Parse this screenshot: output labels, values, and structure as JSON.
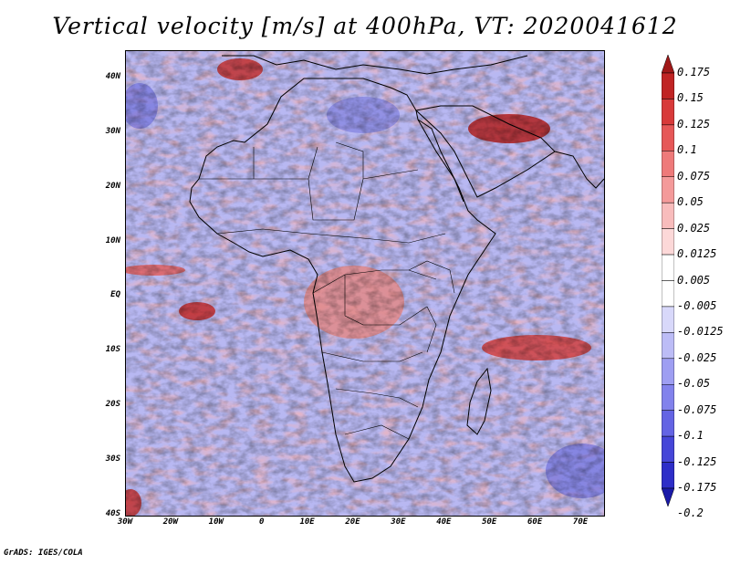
{
  "title": "Vertical velocity [m/s] at 400hPa, VT: 2020041612",
  "map": {
    "lon_min": -30,
    "lon_max": 75,
    "lat_min": -40,
    "lat_max": 45,
    "lat_ticks": [
      {
        "value": 40,
        "label": "40N"
      },
      {
        "value": 30,
        "label": "30N"
      },
      {
        "value": 20,
        "label": "20N"
      },
      {
        "value": 10,
        "label": "10N"
      },
      {
        "value": 0,
        "label": "EQ"
      },
      {
        "value": -10,
        "label": "10S"
      },
      {
        "value": -20,
        "label": "20S"
      },
      {
        "value": -30,
        "label": "30S"
      },
      {
        "value": -40,
        "label": "40S"
      }
    ],
    "lon_ticks": [
      {
        "value": -30,
        "label": "30W"
      },
      {
        "value": -20,
        "label": "20W"
      },
      {
        "value": -10,
        "label": "10W"
      },
      {
        "value": 0,
        "label": "0"
      },
      {
        "value": 10,
        "label": "10E"
      },
      {
        "value": 20,
        "label": "20E"
      },
      {
        "value": 30,
        "label": "30E"
      },
      {
        "value": 40,
        "label": "40E"
      },
      {
        "value": 50,
        "label": "50E"
      },
      {
        "value": 60,
        "label": "60E"
      },
      {
        "value": 70,
        "label": "70E"
      }
    ]
  },
  "colorbar": {
    "labels": [
      "0.175",
      "0.15",
      "0.125",
      "0.1",
      "0.075",
      "0.05",
      "0.025",
      "0.0125",
      "0.005",
      "-0.005",
      "-0.0125",
      "-0.025",
      "-0.05",
      "-0.075",
      "-0.1",
      "-0.125",
      "-0.175",
      "-0.2"
    ],
    "colors": [
      "#a01818",
      "#c02424",
      "#d83a3a",
      "#e65858",
      "#ee7a7a",
      "#f49a9a",
      "#f8bcbc",
      "#fcd8d8",
      "#ffffff",
      "#ffffff",
      "#d8d8fa",
      "#bcbcf6",
      "#9e9ef2",
      "#8282ec",
      "#6464e4",
      "#4646d8",
      "#2e2ec8",
      "#1a1aa8"
    ]
  },
  "footer": "GrADS: IGES/COLA"
}
